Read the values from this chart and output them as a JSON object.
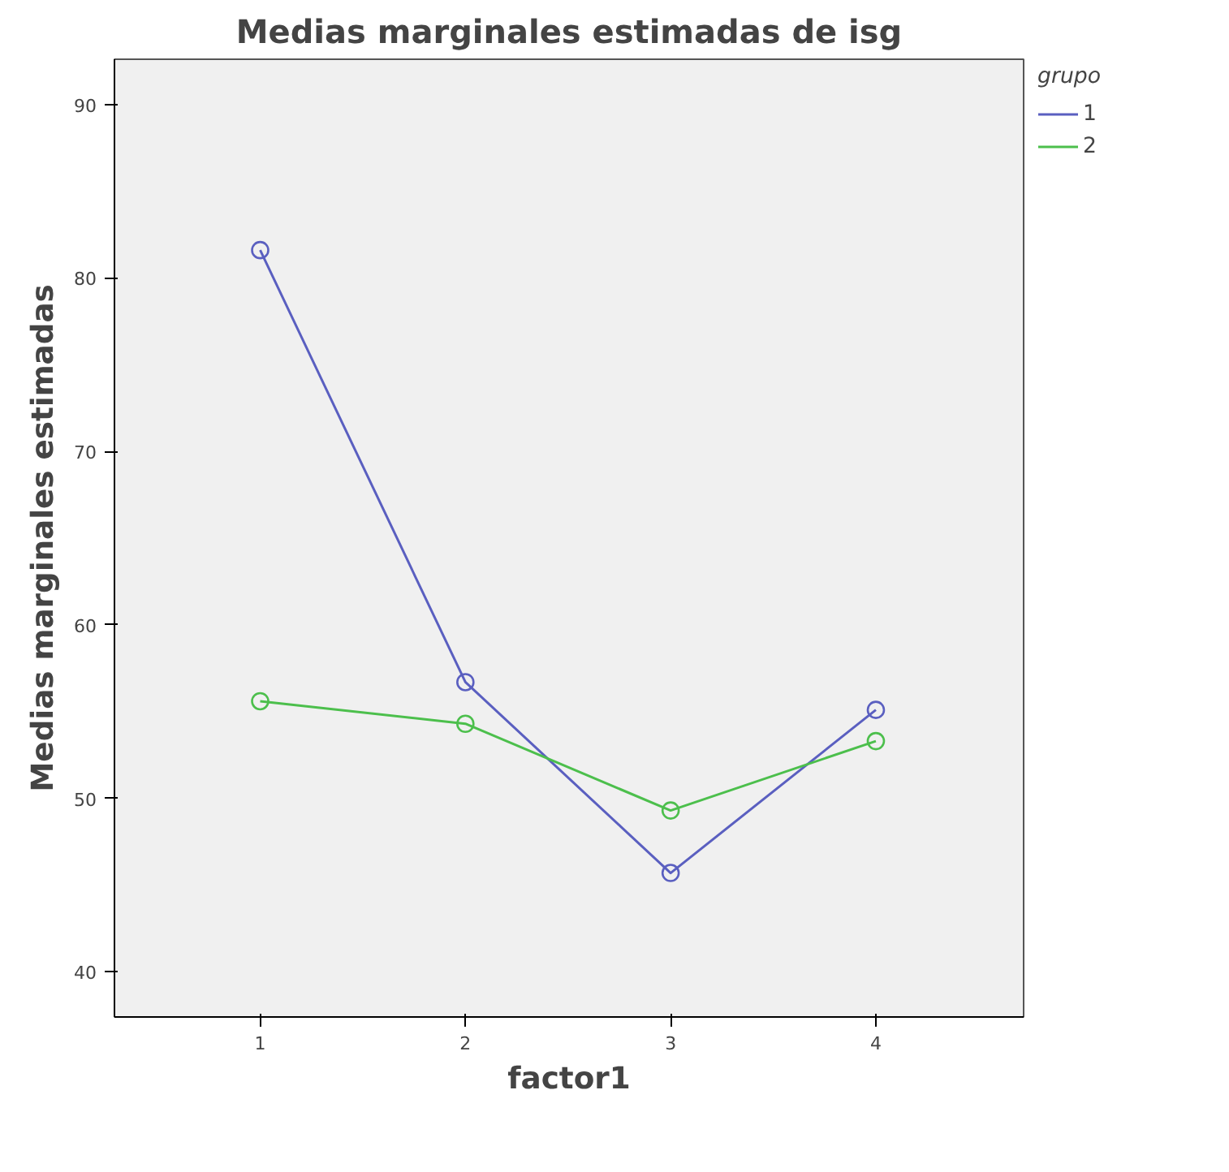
{
  "chart_data": {
    "type": "line",
    "title": "Medias marginales estimadas de isg",
    "xlabel": "factor1",
    "ylabel": "Medias marginales estimadas",
    "legend_title": "grupo",
    "categories": [
      "1",
      "2",
      "3",
      "4"
    ],
    "series": [
      {
        "name": "1",
        "color": "#5a5fc0",
        "values": [
          81.6,
          56.7,
          45.7,
          55.1
        ]
      },
      {
        "name": "2",
        "color": "#4cbf4c",
        "values": [
          55.6,
          54.3,
          49.3,
          53.3
        ]
      }
    ],
    "ylim": [
      37.4,
      92.6
    ],
    "yticks": [
      40,
      50,
      60,
      70,
      80,
      90
    ],
    "grid": false,
    "legend": "top right",
    "marker": "circle",
    "line_style": "solid"
  }
}
